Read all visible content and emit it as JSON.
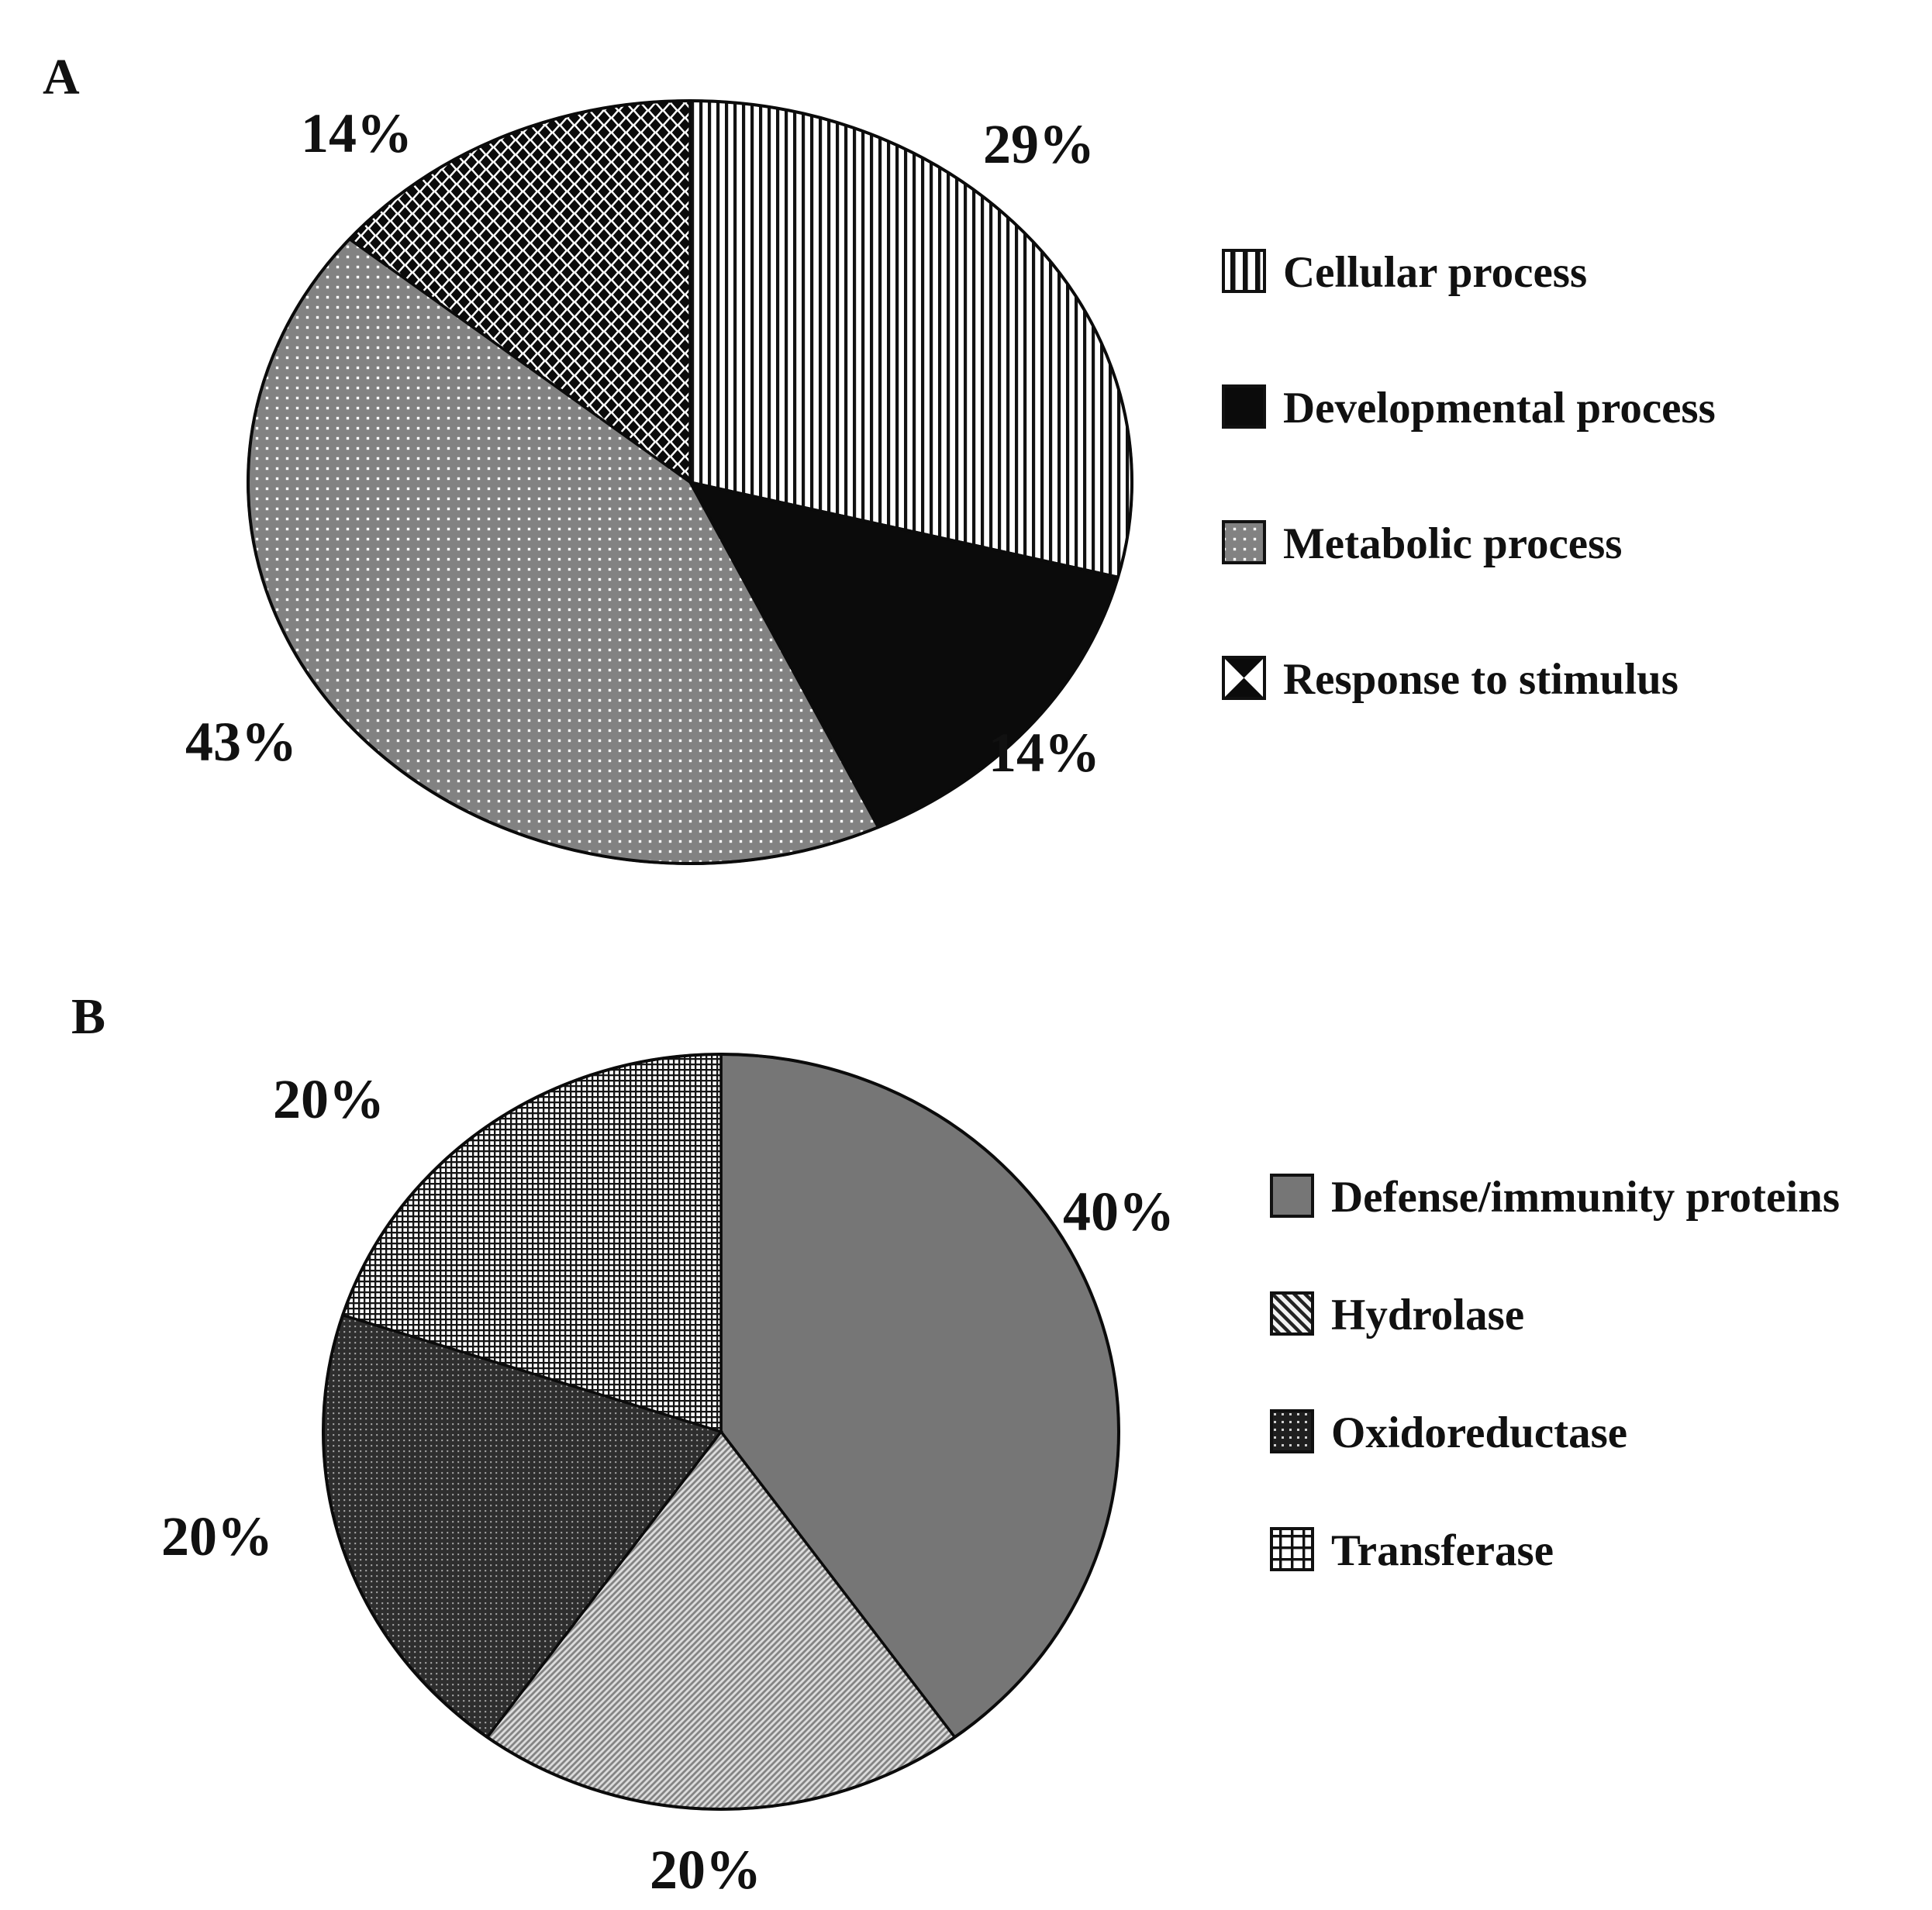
{
  "figure": {
    "panels": [
      {
        "letter": "A",
        "legend": [
          {
            "label": "Cellular process",
            "pattern": "vertical-stripes"
          },
          {
            "label": "Developmental process",
            "pattern": "solid-black"
          },
          {
            "label": "Metabolic process",
            "pattern": "gray-dots"
          },
          {
            "label": "Response to stimulus",
            "pattern": "diamond-check"
          }
        ]
      },
      {
        "letter": "B",
        "legend": [
          {
            "label": "Defense/immunity proteins",
            "pattern": "solid-gray"
          },
          {
            "label": "Hydrolase",
            "pattern": "diagonal-stripes"
          },
          {
            "label": "Oxidoreductase",
            "pattern": "dark-weave"
          },
          {
            "label": "Transferase",
            "pattern": "grid"
          }
        ]
      }
    ]
  },
  "chart_data": [
    {
      "type": "pie",
      "panel": "A",
      "start_angle_deg": 0,
      "direction": "clockwise",
      "legend_position": "right",
      "slices": [
        {
          "label": "Cellular process",
          "value": 29,
          "display": "29%",
          "pattern": "vertical-stripes"
        },
        {
          "label": "Developmental process",
          "value": 14,
          "display": "14%",
          "pattern": "solid-black"
        },
        {
          "label": "Metabolic process",
          "value": 43,
          "display": "43%",
          "pattern": "gray-dots"
        },
        {
          "label": "Response to stimulus",
          "value": 14,
          "display": "14%",
          "pattern": "diamond-check"
        }
      ]
    },
    {
      "type": "pie",
      "panel": "B",
      "start_angle_deg": 0,
      "direction": "clockwise",
      "legend_position": "right",
      "slices": [
        {
          "label": "Defense/immunity proteins",
          "value": 40,
          "display": "40%",
          "pattern": "solid-gray"
        },
        {
          "label": "Hydrolase",
          "value": 20,
          "display": "20%",
          "pattern": "diagonal-stripes"
        },
        {
          "label": "Oxidoreductase",
          "value": 20,
          "display": "20%",
          "pattern": "dark-weave"
        },
        {
          "label": "Transferase",
          "value": 20,
          "display": "20%",
          "pattern": "grid"
        }
      ]
    }
  ],
  "colors": {
    "ink_black": "#0b0b0b",
    "solid_gray": "#767676",
    "metabolic_gray": "#828282",
    "background": "#ffffff"
  }
}
